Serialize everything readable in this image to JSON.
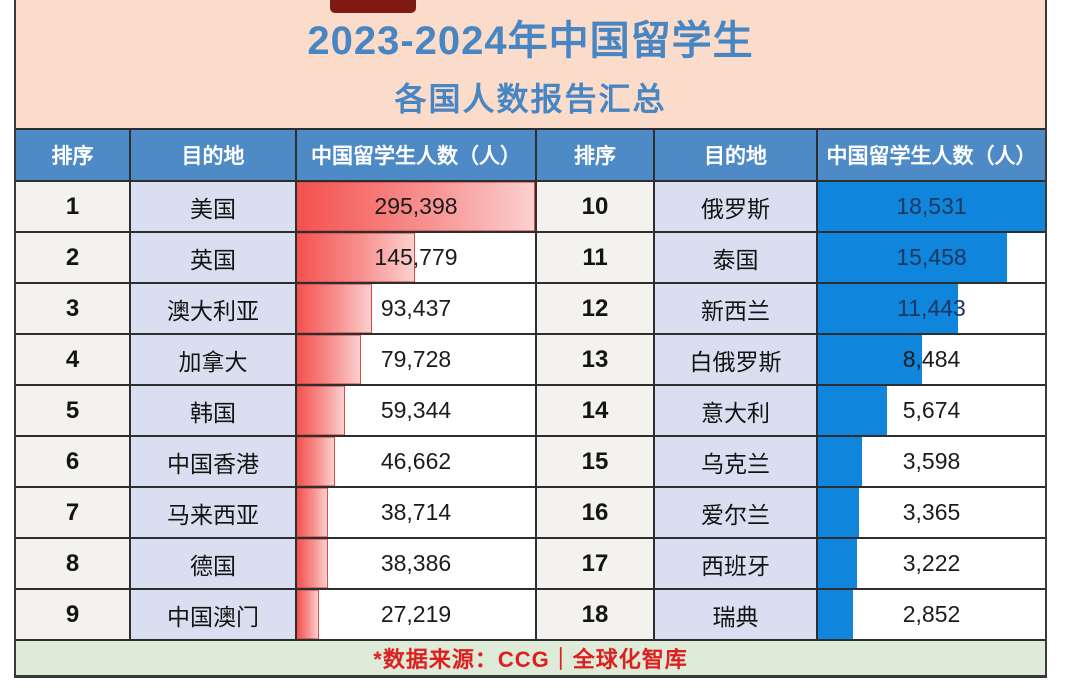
{
  "title": {
    "line1": "2023-2024年中国留学生",
    "line2": "各国人数报告汇总"
  },
  "columns": [
    "排序",
    "目的地",
    "中国留学生人数（人）"
  ],
  "footer": {
    "source_note": "*数据来源：CCG｜全球化智库"
  },
  "colors": {
    "hero_bg": "#fbdccb",
    "title_text": "#4885c3",
    "table_head_bg": "#4e8ac6",
    "table_head_text": "#ffffff",
    "rank_col_bg": "#f3f2ef",
    "destination_col_bg": "#d9dff1",
    "bar_red_start": "#f4514e",
    "bar_red_end": "#fbd0cf",
    "bar_blue": "#0f86db",
    "value_on_blue_bar_text": "#17375e",
    "footer_bg": "#deebd8",
    "footer_text": "#dd1f1f",
    "grid_line": "#2e2e2e",
    "cropped_fragment": "#7e1a12"
  },
  "tables": {
    "left": {
      "theme": "red",
      "rows": [
        {
          "rank": "1",
          "destination": "美国",
          "count": "295,398",
          "count_num": 295398
        },
        {
          "rank": "2",
          "destination": "英国",
          "count": "145,779",
          "count_num": 145779
        },
        {
          "rank": "3",
          "destination": "澳大利亚",
          "count": "93,437",
          "count_num": 93437
        },
        {
          "rank": "4",
          "destination": "加拿大",
          "count": "79,728",
          "count_num": 79728
        },
        {
          "rank": "5",
          "destination": "韩国",
          "count": "59,344",
          "count_num": 59344
        },
        {
          "rank": "6",
          "destination": "中国香港",
          "count": "46,662",
          "count_num": 46662
        },
        {
          "rank": "7",
          "destination": "马来西亚",
          "count": "38,714",
          "count_num": 38714
        },
        {
          "rank": "8",
          "destination": "德国",
          "count": "38,386",
          "count_num": 38386
        },
        {
          "rank": "9",
          "destination": "中国澳门",
          "count": "27,219",
          "count_num": 27219
        }
      ]
    },
    "right": {
      "theme": "blue",
      "rows": [
        {
          "rank": "10",
          "destination": "俄罗斯",
          "count": "18,531",
          "count_num": 18531
        },
        {
          "rank": "11",
          "destination": "泰国",
          "count": "15,458",
          "count_num": 15458
        },
        {
          "rank": "12",
          "destination": "新西兰",
          "count": "11,443",
          "count_num": 11443
        },
        {
          "rank": "13",
          "destination": "白俄罗斯",
          "count": "8,484",
          "count_num": 8484
        },
        {
          "rank": "14",
          "destination": "意大利",
          "count": "5,674",
          "count_num": 5674
        },
        {
          "rank": "15",
          "destination": "乌克兰",
          "count": "3,598",
          "count_num": 3598
        },
        {
          "rank": "16",
          "destination": "爱尔兰",
          "count": "3,365",
          "count_num": 3365
        },
        {
          "rank": "17",
          "destination": "西班牙",
          "count": "3,222",
          "count_num": 3222
        },
        {
          "rank": "18",
          "destination": "瑞典",
          "count": "2,852",
          "count_num": 2852
        }
      ]
    }
  },
  "chart_data": {
    "type": "bar",
    "title": "2023-2024年中国留学生 各国人数报告汇总",
    "categories": [
      "美国",
      "英国",
      "澳大利亚",
      "加拿大",
      "韩国",
      "中国香港",
      "马来西亚",
      "德国",
      "中国澳门",
      "俄罗斯",
      "泰国",
      "新西兰",
      "白俄罗斯",
      "意大利",
      "乌克兰",
      "爱尔兰",
      "西班牙",
      "瑞典"
    ],
    "values": [
      295398,
      145779,
      93437,
      79728,
      59344,
      46662,
      38714,
      38386,
      27219,
      18531,
      15458,
      11443,
      8484,
      5674,
      3598,
      3365,
      3222,
      2852
    ],
    "xlabel": "目的地",
    "ylabel": "中国留学生人数（人）",
    "legend": [],
    "annotations": [
      "*数据来源：CCG｜全球化智库"
    ],
    "layout": "two side-by-side ranked tables; ranks 1-9 red gradient bars scaled to 295398 max, ranks 10-18 blue bars scaled to 18531 max"
  }
}
